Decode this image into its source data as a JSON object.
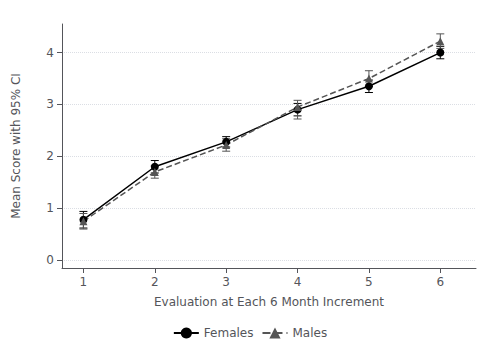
{
  "chart_data": {
    "type": "line",
    "x": [
      1,
      2,
      3,
      4,
      5,
      6
    ],
    "series": [
      {
        "name": "Females",
        "color": "#000000",
        "marker": "circle",
        "line_style": "solid",
        "values": [
          0.78,
          1.8,
          2.28,
          2.9,
          3.35,
          4.0
        ],
        "lower": [
          0.62,
          1.68,
          2.18,
          2.78,
          3.23,
          3.88
        ],
        "upper": [
          0.94,
          1.92,
          2.38,
          3.02,
          3.47,
          4.12
        ]
      },
      {
        "name": "Males",
        "color": "#555555",
        "marker": "triangle",
        "line_style": "dashed",
        "values": [
          0.75,
          1.7,
          2.22,
          2.95,
          3.5,
          4.22
        ],
        "lower": [
          0.6,
          1.58,
          2.1,
          2.72,
          3.35,
          4.08
        ],
        "upper": [
          0.9,
          1.82,
          2.34,
          3.08,
          3.65,
          4.36
        ]
      }
    ],
    "xlabel": "Evaluation at Each 6 Month Increment",
    "ylabel": "Mean Score with 95% CI",
    "xlim": [
      0.7,
      6.5
    ],
    "ylim": [
      -0.15,
      4.55
    ],
    "xticks": [
      1,
      2,
      3,
      4,
      5,
      6
    ],
    "yticks": [
      0,
      1,
      2,
      3,
      4
    ],
    "grid": true,
    "legend": "bottom"
  }
}
